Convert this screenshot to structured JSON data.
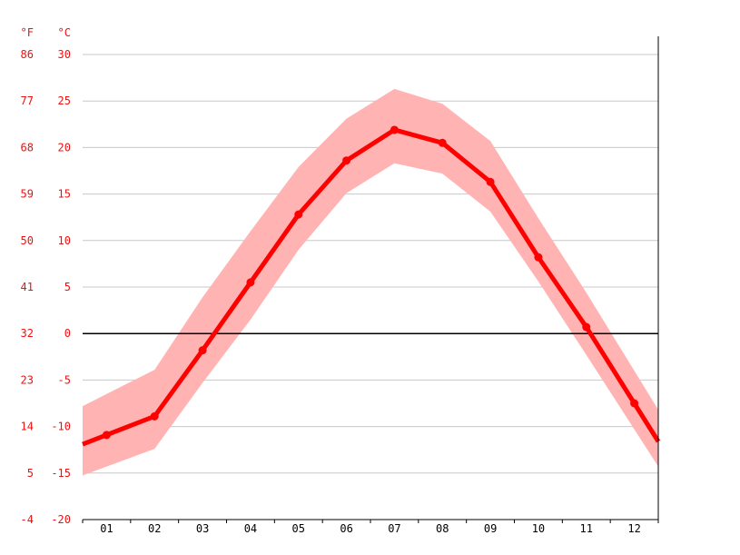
{
  "chart_data": {
    "type": "line",
    "title": "",
    "xlabel": "",
    "ylabel": "",
    "units": {
      "fahrenheit": "°F",
      "celsius": "°C"
    },
    "categories": [
      "01",
      "02",
      "03",
      "04",
      "05",
      "06",
      "07",
      "08",
      "09",
      "10",
      "11",
      "12"
    ],
    "y_ticks_celsius": [
      "30",
      "25",
      "20",
      "15",
      "10",
      "5",
      "0",
      "-5",
      "-10",
      "-15",
      "-20"
    ],
    "y_ticks_fahrenheit": [
      "86",
      "77",
      "68",
      "59",
      "50",
      "41",
      "32",
      "23",
      "14",
      "5",
      "-4"
    ],
    "ylim": [
      -20,
      30
    ],
    "grid": true,
    "series": [
      {
        "values": [
          -10.9,
          -8.9,
          -1.8,
          5.5,
          12.8,
          18.6,
          21.9,
          20.5,
          16.3,
          8.2,
          0.7,
          -7.5
        ]
      }
    ],
    "band": {
      "upper": [
        -6.5,
        -3.9,
        3.9,
        11.0,
        17.9,
        23.1,
        26.3,
        24.7,
        20.7,
        12.4,
        4.4,
        -4.0
      ],
      "lower": [
        -14.3,
        -12.4,
        -5.3,
        1.5,
        9.0,
        15.1,
        18.3,
        17.2,
        13.1,
        5.6,
        -2.3,
        -10.3
      ]
    },
    "colors": {
      "line": "#ff0000",
      "band": "#ffb3b3",
      "label": "#ee1111"
    }
  }
}
